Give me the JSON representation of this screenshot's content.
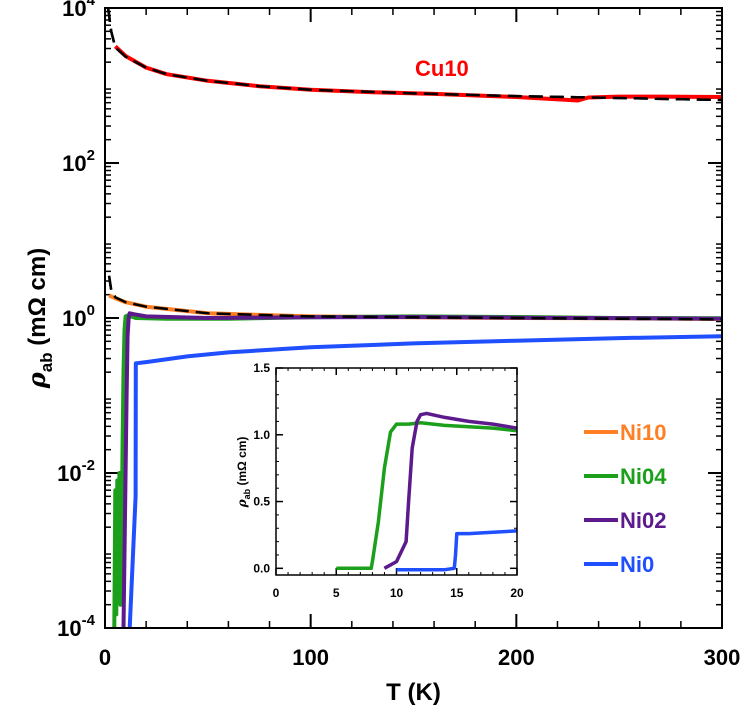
{
  "chart_data": [
    {
      "type": "line",
      "xlabel": "T (K)",
      "ylabel": {
        "symbol": "ρ",
        "subscript": "ab",
        "unit": " (mΩ cm)"
      },
      "xlim": [
        0,
        300
      ],
      "ylim": [
        0.0001,
        10000
      ],
      "yscale": "log",
      "xticks": [
        0,
        100,
        200,
        300
      ],
      "yticks": [
        {
          "base": "10",
          "exp": "-4",
          "value": 0.0001
        },
        {
          "base": "10",
          "exp": "-2",
          "value": 0.01
        },
        {
          "base": "10",
          "exp": "0",
          "value": 1
        },
        {
          "base": "10",
          "exp": "2",
          "value": 100
        },
        {
          "base": "10",
          "exp": "4",
          "value": 10000
        }
      ],
      "grid": false,
      "series": [
        {
          "name": "Cu10",
          "color": "#ff0000",
          "x": [
            5,
            10,
            20,
            30,
            50,
            75,
            100,
            130,
            160,
            200,
            230,
            235,
            250,
            270,
            300
          ],
          "y": [
            3200,
            2400,
            1700,
            1400,
            1150,
            980,
            880,
            820,
            780,
            710,
            640,
            700,
            720,
            720,
            710
          ]
        },
        {
          "name": "Ni10",
          "color": "#ff7f24",
          "x": [
            2,
            5,
            10,
            20,
            50,
            100,
            150,
            200,
            250,
            300
          ],
          "y": [
            1.95,
            1.8,
            1.6,
            1.4,
            1.15,
            1.05,
            1.02,
            1.0,
            0.99,
            0.97
          ]
        },
        {
          "name": "Ni04",
          "color": "#1ca01c",
          "x": [
            4.5,
            5,
            5.5,
            6,
            6.5,
            7,
            7.5,
            8,
            8.5,
            9,
            9.5,
            10,
            11,
            15,
            30,
            60,
            100,
            150,
            200,
            250,
            300
          ],
          "y": [
            0.0001,
            0.006,
            0.00015,
            0.008,
            0.0004,
            0.01,
            0.0002,
            0.0008,
            0.02,
            0.2,
            0.7,
            1.05,
            1.08,
            1.0,
            0.98,
            0.98,
            1.02,
            1.05,
            1.03,
            1.0,
            0.99
          ]
        },
        {
          "name": "Ni02",
          "color": "#5c1a8c",
          "x": [
            9,
            10.5,
            11,
            11.5,
            12,
            14,
            20,
            50,
            100,
            150,
            200,
            300
          ],
          "y": [
            0.0001,
            0.1,
            0.6,
            1.0,
            1.15,
            1.12,
            1.05,
            1.0,
            1.02,
            1.03,
            1.01,
            0.98
          ]
        },
        {
          "name": "Ni0",
          "color": "#1f4fff",
          "x": [
            12,
            14.9,
            15,
            20,
            40,
            60,
            100,
            150,
            200,
            250,
            300
          ],
          "y": [
            0.0001,
            0.005,
            0.26,
            0.27,
            0.32,
            0.36,
            0.42,
            0.47,
            0.51,
            0.55,
            0.58
          ]
        }
      ],
      "fits": [
        {
          "style": "dashed",
          "color": "#000000",
          "x": [
            1.5,
            3,
            5,
            10,
            20,
            30,
            50,
            75,
            100,
            150,
            200,
            250,
            300
          ],
          "y": [
            10000,
            5000,
            3100,
            2350,
            1700,
            1400,
            1150,
            980,
            880,
            790,
            730,
            690,
            650
          ]
        },
        {
          "style": "dashed",
          "color": "#000000",
          "x": [
            2,
            3,
            5,
            10,
            20,
            50,
            100,
            150,
            200,
            250,
            300
          ],
          "y": [
            3.5,
            2.3,
            1.85,
            1.6,
            1.4,
            1.15,
            1.05,
            1.02,
            1.0,
            0.98,
            0.96
          ]
        }
      ],
      "annotations": [
        {
          "text": "Cu10",
          "color": "#ff0000"
        }
      ],
      "legend": {
        "placement": "right",
        "entries": [
          "Ni10",
          "Ni04",
          "Ni02",
          "Ni0"
        ]
      }
    },
    {
      "type": "line",
      "role": "inset",
      "xlabel": "",
      "ylabel": {
        "symbol": "ρ",
        "subscript": "ab",
        "unit": " (mΩ cm)"
      },
      "xlim": [
        0,
        20
      ],
      "ylim": [
        -0.05,
        1.5
      ],
      "xticks": [
        "0",
        "5",
        "10",
        "15",
        "20"
      ],
      "yticks": [
        "0.0",
        "0.5",
        "1.0",
        "1.5"
      ],
      "grid": false,
      "series": [
        {
          "name": "Ni04",
          "color": "#1ca01c",
          "x": [
            5,
            6,
            7,
            7.9,
            8,
            8.5,
            9,
            9.5,
            10,
            11,
            12,
            14,
            16,
            18,
            20
          ],
          "y": [
            0,
            0,
            0,
            0,
            0.05,
            0.35,
            0.75,
            1.02,
            1.08,
            1.08,
            1.09,
            1.07,
            1.06,
            1.05,
            1.03
          ]
        },
        {
          "name": "Ni02",
          "color": "#5c1a8c",
          "x": [
            9,
            10,
            10.8,
            11,
            11.3,
            11.7,
            12,
            12.5,
            14,
            16,
            18,
            20
          ],
          "y": [
            0,
            0.05,
            0.2,
            0.5,
            0.9,
            1.1,
            1.15,
            1.16,
            1.13,
            1.1,
            1.08,
            1.05
          ]
        },
        {
          "name": "Ni0",
          "color": "#1f4fff",
          "x": [
            10,
            12,
            14,
            14.8,
            14.9,
            15,
            16,
            18,
            20
          ],
          "y": [
            -0.01,
            -0.01,
            -0.01,
            0.0,
            0.1,
            0.26,
            0.26,
            0.27,
            0.28
          ]
        }
      ]
    }
  ]
}
